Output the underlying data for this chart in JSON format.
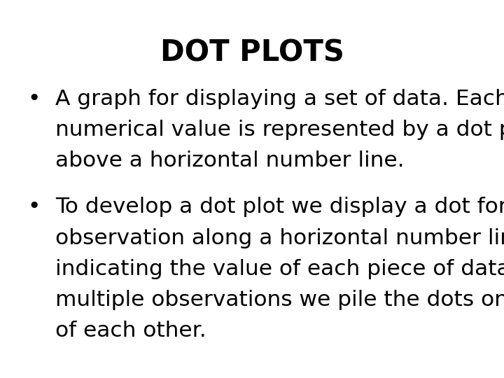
{
  "title": "DOT PLOTS",
  "title_fontsize": 30,
  "title_fontweight": "bold",
  "background_color": "#ffffff",
  "text_color": "#000000",
  "bullet1_line1": "A graph for displaying a set of data. Each",
  "bullet1_line2": "numerical value is represented by a dot placed",
  "bullet1_line3": "above a horizontal number line.",
  "bullet2_line1": "To develop a dot plot we display a dot for each",
  "bullet2_line2": "observation along a horizontal number line",
  "bullet2_line3": "indicating the value of each piece of data. For",
  "bullet2_line4": "multiple observations we pile the dots on top",
  "bullet2_line5": "of each other.",
  "body_fontsize": 22.5,
  "body_fontfamily": "DejaVu Sans",
  "bullet_char": "•"
}
